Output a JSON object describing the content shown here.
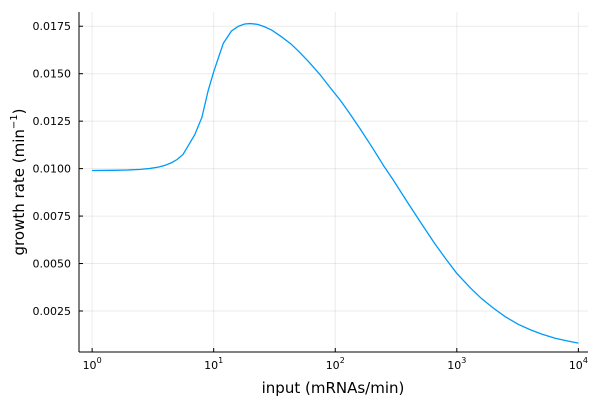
{
  "chart_data": {
    "type": "line",
    "title": "",
    "xlabel": "input (mRNAs/min)",
    "ylabel_prefix": "growth rate (min",
    "ylabel_sup": "−1",
    "ylabel_suffix": ")",
    "xscale": "log10",
    "xlim": [
      0.78,
      12000
    ],
    "ylim": [
      0.00034,
      0.01825
    ],
    "xticks": [
      {
        "value": 1,
        "base": "10",
        "exp": "0"
      },
      {
        "value": 10,
        "base": "10",
        "exp": "1"
      },
      {
        "value": 100,
        "base": "10",
        "exp": "2"
      },
      {
        "value": 1000,
        "base": "10",
        "exp": "3"
      },
      {
        "value": 10000,
        "base": "10",
        "exp": "4"
      }
    ],
    "yticks": [
      {
        "value": 0.0025,
        "label": "0.0025"
      },
      {
        "value": 0.005,
        "label": "0.0050"
      },
      {
        "value": 0.0075,
        "label": "0.0075"
      },
      {
        "value": 0.01,
        "label": "0.0100"
      },
      {
        "value": 0.0125,
        "label": "0.0125"
      },
      {
        "value": 0.015,
        "label": "0.0150"
      },
      {
        "value": 0.0175,
        "label": "0.0175"
      }
    ],
    "grid": true,
    "legend": "none",
    "series": [
      {
        "color": "#009AFA",
        "x": [
          1,
          1.5,
          2,
          2.5,
          3,
          3.5,
          4,
          4.5,
          5,
          5.6,
          6.3,
          7,
          8,
          9,
          10,
          12,
          14,
          16,
          18,
          20,
          23,
          26,
          30,
          36,
          43,
          50,
          60,
          75,
          90,
          110,
          130,
          160,
          200,
          250,
          300,
          400,
          500,
          650,
          800,
          1000,
          1300,
          1600,
          2000,
          2500,
          3200,
          4000,
          5000,
          6500,
          8000,
          10000
        ],
        "y": [
          0.0099,
          0.00991,
          0.00993,
          0.00996,
          0.01001,
          0.01008,
          0.01018,
          0.01031,
          0.01048,
          0.01075,
          0.0113,
          0.0118,
          0.0127,
          0.0141,
          0.0151,
          0.0166,
          0.01725,
          0.0175,
          0.01762,
          0.01764,
          0.0176,
          0.01748,
          0.0173,
          0.01695,
          0.01658,
          0.01618,
          0.01565,
          0.01495,
          0.0143,
          0.0136,
          0.01295,
          0.0121,
          0.01115,
          0.01015,
          0.0094,
          0.00815,
          0.0072,
          0.0061,
          0.0053,
          0.00448,
          0.0037,
          0.00315,
          0.00265,
          0.0022,
          0.0018,
          0.00152,
          0.00128,
          0.00106,
          0.00093,
          0.00081
        ]
      }
    ]
  }
}
